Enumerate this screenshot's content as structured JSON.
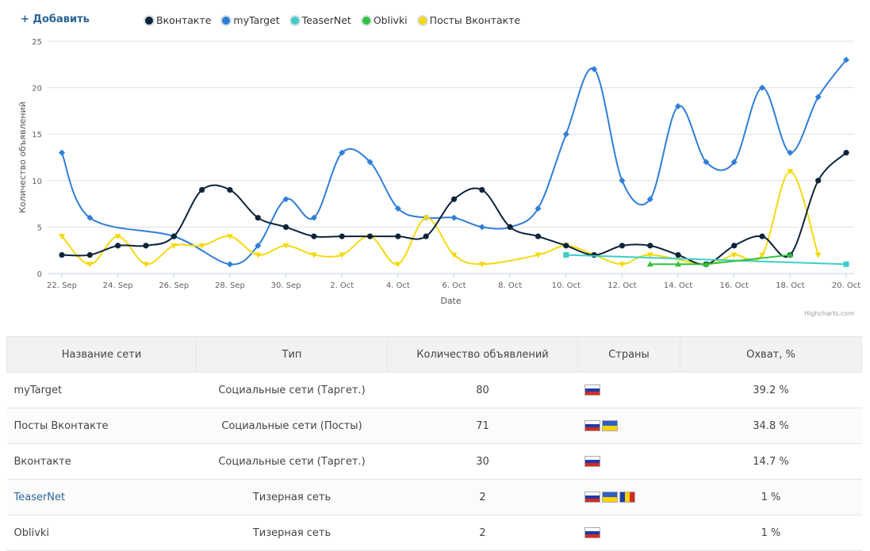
{
  "toolbar": {
    "add_label": "+ Добавить"
  },
  "legend": [
    {
      "name": "Вконтакте",
      "color": "#0d233a"
    },
    {
      "name": "myTarget",
      "color": "#2f7ed8"
    },
    {
      "name": "TeaserNet",
      "color": "#3ecdc8"
    },
    {
      "name": "Oblivki",
      "color": "#2fc23c"
    },
    {
      "name": "Посты Вконтакте",
      "color": "#f5d90e"
    }
  ],
  "chart_data": {
    "type": "line",
    "xlabel": "Date",
    "ylabel": "Количество объявлений",
    "ylim": [
      0,
      25
    ],
    "yticks": [
      0,
      5,
      10,
      15,
      20,
      25
    ],
    "x_tick_labels": [
      "22. Sep",
      "24. Sep",
      "26. Sep",
      "28. Sep",
      "30. Sep",
      "2. Oct",
      "4. Oct",
      "6. Oct",
      "8. Oct",
      "10. Oct",
      "12. Oct",
      "14. Oct",
      "16. Oct",
      "18. Oct",
      "20. Oct"
    ],
    "x": [
      "22. Sep",
      "23. Sep",
      "24. Sep",
      "25. Sep",
      "26. Sep",
      "27. Sep",
      "28. Sep",
      "29. Sep",
      "30. Sep",
      "1. Oct",
      "2. Oct",
      "3. Oct",
      "4. Oct",
      "5. Oct",
      "6. Oct",
      "7. Oct",
      "8. Oct",
      "9. Oct",
      "10. Oct",
      "11. Oct",
      "12. Oct",
      "13. Oct",
      "14. Oct",
      "15. Oct",
      "16. Oct",
      "17. Oct",
      "18. Oct",
      "19. Oct",
      "20. Oct"
    ],
    "series": [
      {
        "name": "myTarget",
        "color": "#2f7ed8",
        "marker": "diamond",
        "values": [
          13,
          6,
          null,
          null,
          4,
          null,
          1,
          3,
          8,
          6,
          13,
          12,
          7,
          6,
          6,
          5,
          5,
          7,
          15,
          22,
          10,
          8,
          18,
          12,
          12,
          20,
          13,
          19,
          23
        ]
      },
      {
        "name": "Посты Вконтакте",
        "color": "#f5d90e",
        "marker": "triangle-down",
        "values": [
          4,
          1,
          4,
          1,
          3,
          3,
          4,
          2,
          3,
          2,
          2,
          4,
          1,
          6,
          2,
          1,
          null,
          2,
          3,
          2,
          1,
          2,
          null,
          1,
          2,
          2,
          11,
          2,
          null
        ]
      },
      {
        "name": "Вконтакте",
        "color": "#0d233a",
        "marker": "circle",
        "values": [
          2,
          2,
          3,
          3,
          4,
          9,
          9,
          6,
          5,
          4,
          4,
          4,
          4,
          4,
          8,
          9,
          5,
          4,
          3,
          2,
          3,
          3,
          2,
          1,
          3,
          4,
          2,
          10,
          13
        ]
      },
      {
        "name": "TeaserNet",
        "color": "#3ecdc8",
        "marker": "square",
        "values": [
          null,
          null,
          null,
          null,
          null,
          null,
          null,
          null,
          null,
          null,
          null,
          null,
          null,
          null,
          null,
          null,
          null,
          null,
          2,
          null,
          null,
          null,
          null,
          null,
          null,
          null,
          null,
          null,
          1
        ]
      },
      {
        "name": "Oblivki",
        "color": "#2fc23c",
        "marker": "triangle",
        "values": [
          null,
          null,
          null,
          null,
          null,
          null,
          null,
          null,
          null,
          null,
          null,
          null,
          null,
          null,
          null,
          null,
          null,
          null,
          null,
          null,
          null,
          1,
          1,
          1,
          null,
          null,
          2,
          null,
          null
        ]
      }
    ],
    "credits": "Highcharts.com",
    "grid": true
  },
  "table": {
    "headers": [
      "Название сети",
      "Тип",
      "Количество объявлений",
      "Страны",
      "Охват, %"
    ],
    "rows": [
      {
        "name": "myTarget",
        "type": "Социальные сети (Таргет.)",
        "count": "80",
        "flags": [
          "ru"
        ],
        "reach": "39.2 %",
        "link": false
      },
      {
        "name": "Посты Вконтакте",
        "type": "Социальные сети (Посты)",
        "count": "71",
        "flags": [
          "ru",
          "ua"
        ],
        "reach": "34.8 %",
        "link": false
      },
      {
        "name": "Вконтакте",
        "type": "Социальные сети (Таргет.)",
        "count": "30",
        "flags": [
          "ru"
        ],
        "reach": "14.7 %",
        "link": false
      },
      {
        "name": "TeaserNet",
        "type": "Тизерная сеть",
        "count": "2",
        "flags": [
          "ru",
          "ua",
          "md"
        ],
        "reach": "1 %",
        "link": true
      },
      {
        "name": "Oblivki",
        "type": "Тизерная сеть",
        "count": "2",
        "flags": [
          "ru"
        ],
        "reach": "1 %",
        "link": false
      }
    ]
  }
}
